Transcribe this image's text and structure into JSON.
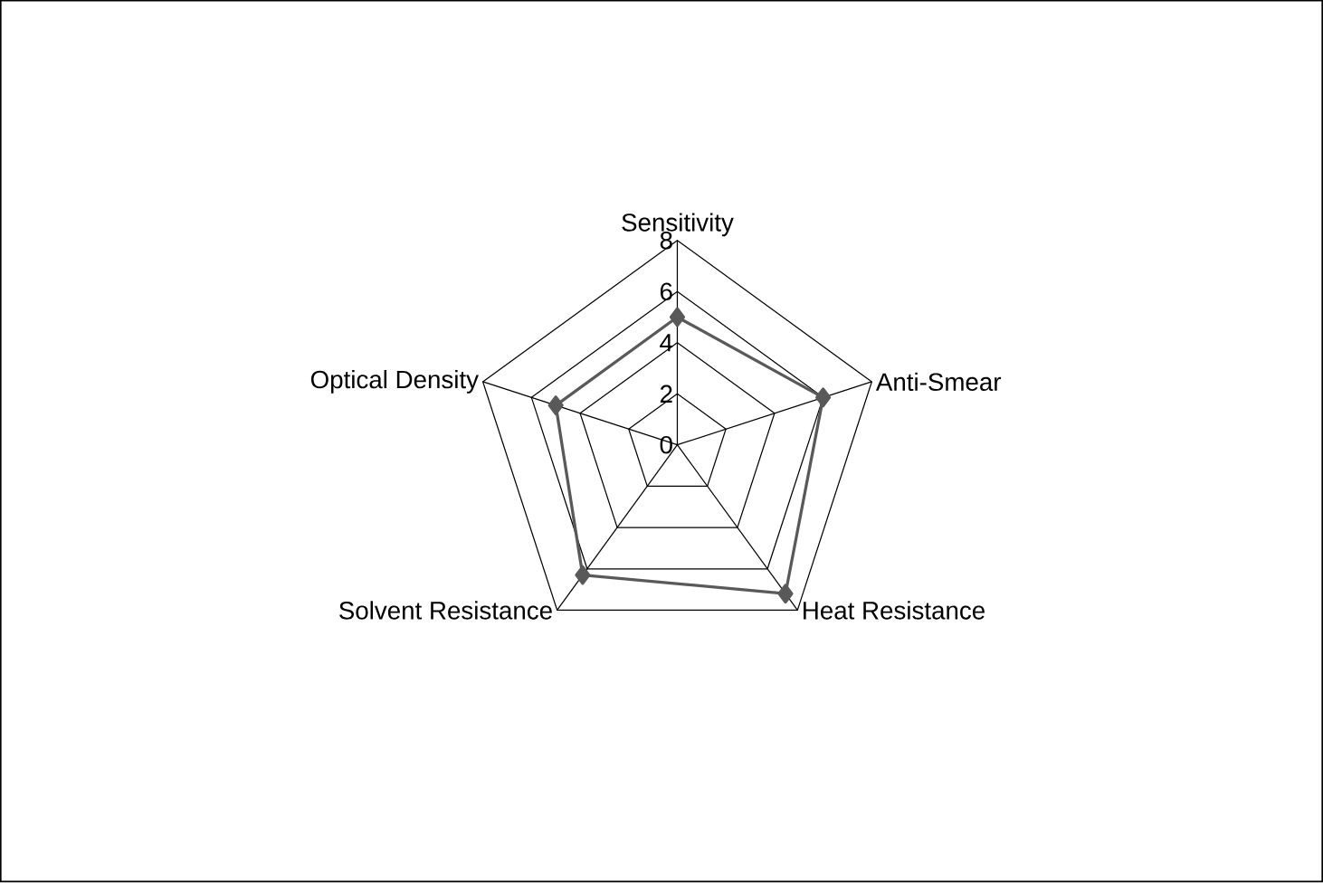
{
  "chart_data": {
    "type": "radar",
    "categories": [
      "Sensitivity",
      "Anti-Smear",
      "Heat Resistance",
      "Solvent Resistance",
      "Optical Density"
    ],
    "series": [
      {
        "color": "#595959",
        "values": [
          5,
          6,
          7.2,
          6.3,
          5
        ]
      }
    ],
    "ylim": [
      0,
      8
    ],
    "yticks": [
      0,
      2,
      4,
      6,
      8
    ],
    "grid": true,
    "marker": "diamond",
    "line_style": "solid"
  }
}
